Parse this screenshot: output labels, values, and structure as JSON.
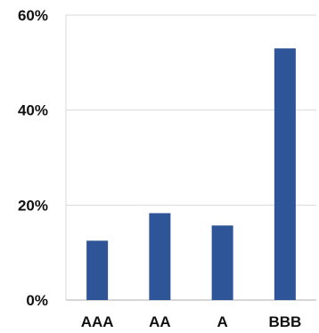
{
  "chart_data": {
    "type": "bar",
    "categories": [
      "AAA",
      "AA",
      "A",
      "BBB"
    ],
    "values": [
      12.5,
      18.3,
      15.7,
      53.0
    ],
    "ylim": [
      0,
      60
    ],
    "yticks": [
      "0%",
      "20%",
      "40%",
      "60%"
    ],
    "ytick_values": [
      0,
      20,
      40,
      60
    ],
    "grid": true,
    "legend": "none",
    "colors": {
      "bar": "#2E5597",
      "grid": "#D9D9D9",
      "axis": "#BFBFBF"
    }
  }
}
